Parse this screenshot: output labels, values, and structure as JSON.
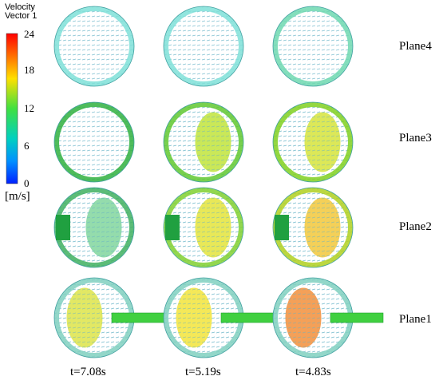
{
  "legend": {
    "title_line1": "Velocity",
    "title_line2": "Vector 1",
    "ticks": [
      "24",
      "18",
      "12",
      "6",
      "0"
    ],
    "unit": "[m/s]",
    "range": [
      0,
      24
    ],
    "colormap": [
      "#ff0000",
      "#ff8000",
      "#ffff00",
      "#80ff00",
      "#00e080",
      "#00c0ff",
      "#0040ff"
    ]
  },
  "planes": [
    "Plane4",
    "Plane3",
    "Plane2",
    "Plane1"
  ],
  "times": [
    "t=7.08s",
    "t=5.19s",
    "t=4.83s"
  ]
}
